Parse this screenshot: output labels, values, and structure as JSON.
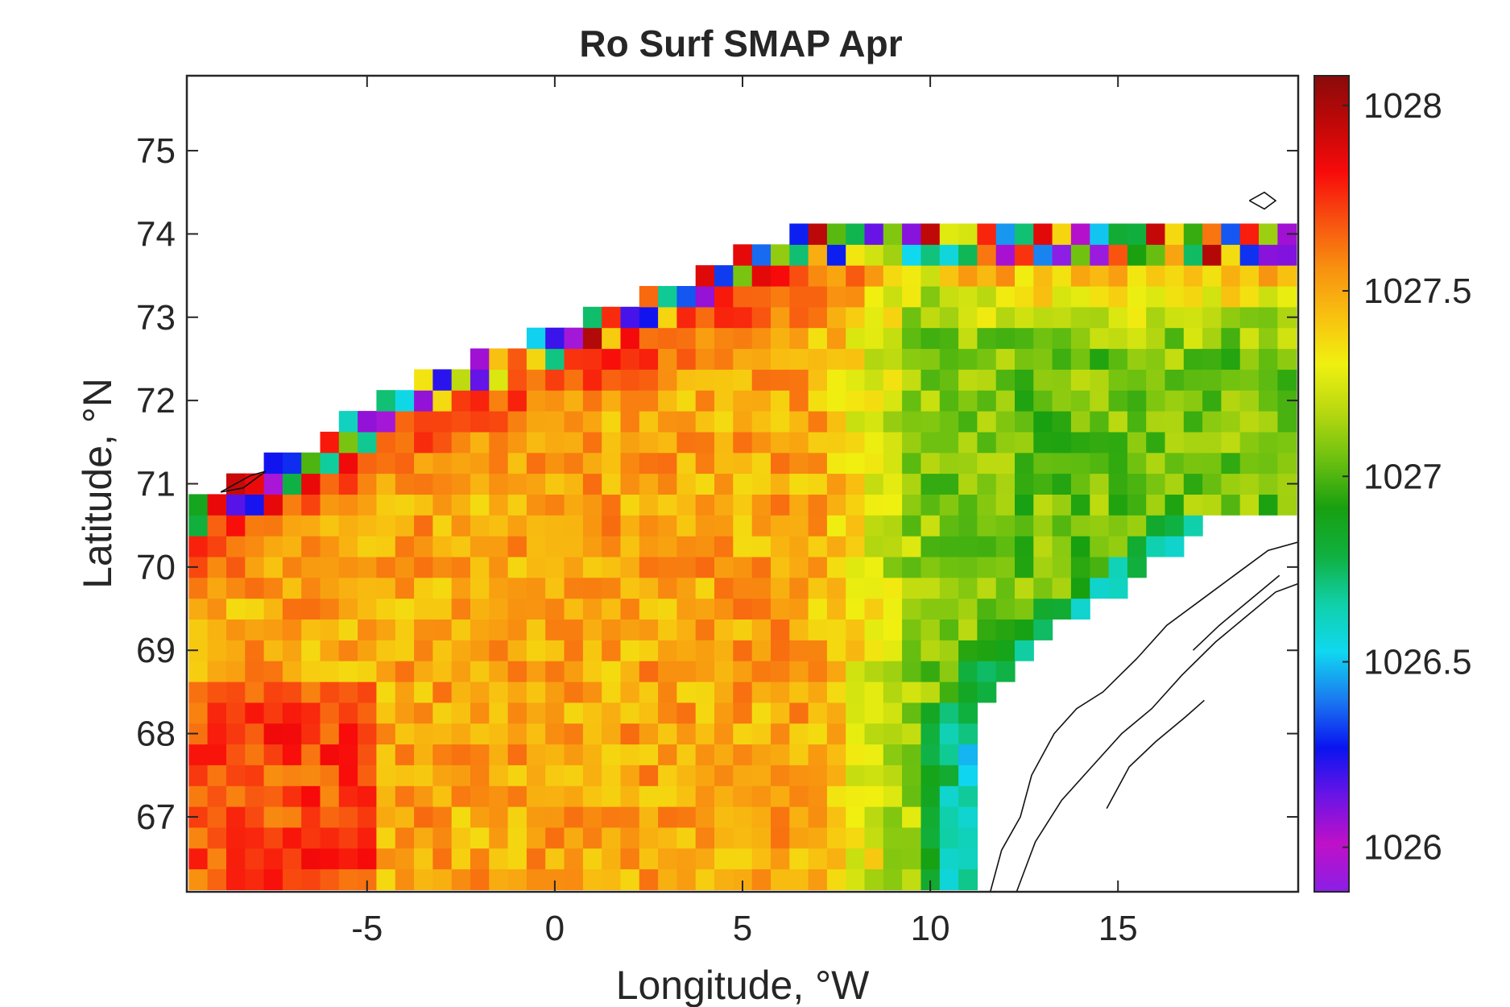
{
  "chart_data": {
    "type": "heatmap",
    "title": "Ro Surf SMAP Apr",
    "xlabel": "Longitude, °W",
    "ylabel": "Latitude, °N",
    "xlim": [
      -9.8,
      19.8
    ],
    "ylim": [
      66.1,
      75.9
    ],
    "xticks": [
      -5,
      0,
      5,
      10,
      15
    ],
    "yticks": [
      67,
      68,
      69,
      70,
      71,
      72,
      73,
      74,
      75
    ],
    "xtick_labels": [
      "-5",
      "0",
      "5",
      "10",
      "15"
    ],
    "ytick_labels": [
      "67",
      "68",
      "69",
      "70",
      "71",
      "72",
      "73",
      "74",
      "75"
    ],
    "grid": false,
    "colorbar": {
      "range": [
        1025.88,
        1028.08
      ],
      "ticks": [
        1026,
        1026.5,
        1027,
        1027.5,
        1028
      ],
      "tick_labels": [
        "1026",
        "1026.5",
        "1027",
        "1027.5",
        "1028"
      ],
      "colormap": [
        "#8a1fe6",
        "#c010c8",
        "#6a14e6",
        "#0a14f0",
        "#1a7af0",
        "#10d8f0",
        "#10d0a8",
        "#10b040",
        "#18a010",
        "#6cc010",
        "#b8d810",
        "#f0f010",
        "#f8c010",
        "#f89010",
        "#f85010",
        "#f80a0a",
        "#c00808",
        "#8a0a0a"
      ]
    },
    "grid_resolution": {
      "dlon": 0.5,
      "dlat": 0.25
    },
    "field_summary": {
      "west_mean": 1027.5,
      "east_open_ocean_mean": 1027.05,
      "norwegian_coastal_current_min": 1026.5,
      "northern_edge_max": 1028.0
    }
  }
}
